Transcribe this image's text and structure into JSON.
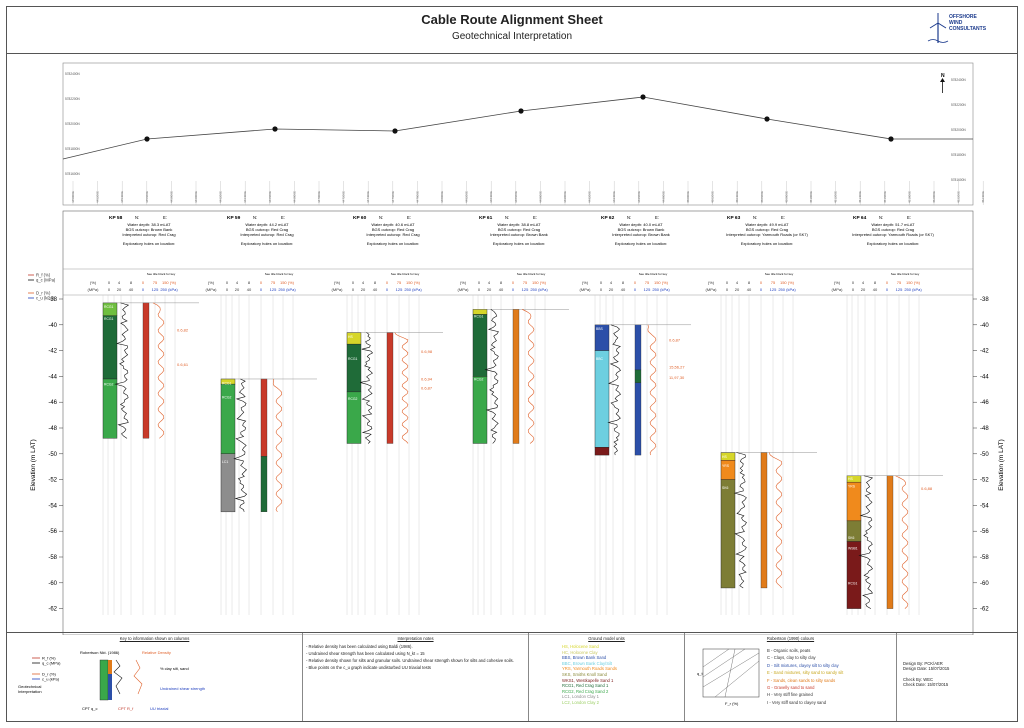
{
  "title": "Cable Route Alignment Sheet",
  "subtitle": "Geotechnical Interpretation",
  "logo": {
    "line1": "OFFSHORE",
    "line2": "WIND",
    "line3": "CONSULTANTS"
  },
  "plan": {
    "north_label": "N",
    "left_ticks": [
      "5782400N",
      "5782200N",
      "5782000N",
      "5781800N",
      "5781600N"
    ],
    "right_ticks": [
      "5782400N",
      "5782200N",
      "5782000N",
      "5781800N",
      "5781600N"
    ],
    "easting_ticks": [
      "445000E",
      "445200E",
      "445400E",
      "445600E",
      "445800E",
      "446000E",
      "446200E",
      "446400E",
      "446600E",
      "446800E",
      "447000E",
      "447200E",
      "447400E",
      "447600E",
      "447800E",
      "448000E",
      "448200E",
      "448400E",
      "448600E",
      "448800E",
      "449000E",
      "449200E",
      "449400E",
      "449600E",
      "449800E",
      "450000E",
      "450200E",
      "450400E",
      "450600E",
      "450800E",
      "451000E",
      "451200E",
      "451400E",
      "451600E",
      "451800E",
      "452000E",
      "452200E",
      "452400E"
    ]
  },
  "kps": [
    {
      "kp": "KP 58",
      "N": "N:",
      "E": "E:",
      "water": "Water depth: 38.3 mLAT",
      "bgs": "BGS outcrop: Brown Bank",
      "interp": "Interpreted outcrop: Red Crag",
      "holes": "Exploratory holes on location:"
    },
    {
      "kp": "KP 59",
      "N": "N:",
      "E": "E:",
      "water": "Water depth: 44.2 mLAT",
      "bgs": "BGS outcrop: Red Crag",
      "interp": "Interpreted outcrop: Red Crag",
      "holes": "Exploratory holes on location:"
    },
    {
      "kp": "KP 60",
      "N": "N:",
      "E": "E:",
      "water": "Water depth: 40.6 mLAT",
      "bgs": "BGS outcrop: Red Crag",
      "interp": "Interpreted outcrop: Red Crag",
      "holes": "Exploratory holes on location:"
    },
    {
      "kp": "KP 61",
      "N": "N:",
      "E": "E:",
      "water": "Water depth: 38.8 mLAT",
      "bgs": "BGS outcrop: Red Crag",
      "interp": "Interpreted outcrop: Brown Bank",
      "holes": "Exploratory holes on location:"
    },
    {
      "kp": "KP 62",
      "N": "N:",
      "E": "E:",
      "water": "Water depth: 40.0 mLAT",
      "bgs": "BGS outcrop: Brown Bank",
      "interp": "Interpreted outcrop: Brown Bank",
      "holes": "Exploratory holes on location:"
    },
    {
      "kp": "KP 63",
      "N": "N:",
      "E": "E:",
      "water": "Water depth: 49.9 mLAT",
      "bgs": "BGS outcrop: Red Crag",
      "interp": "Interpreted outcrop: Yarmouth Roads (or SK7)",
      "holes": "Exploratory holes on location:"
    },
    {
      "kp": "KP 64",
      "N": "N:",
      "E": "E:",
      "water": "Water depth: 51.7 mLAT",
      "bgs": "BGS outcrop: Red Crag",
      "interp": "Interpreted outcrop: Yarmouth Roads (or SK7)",
      "holes": "Exploratory holes on location:"
    }
  ],
  "legend": {
    "rf": "R_f (%)",
    "qc": "q_c (MPa)",
    "dr": "D_r (%)",
    "cu": "c_u (kPa)"
  },
  "column_header": {
    "see": "See title block for key",
    "row1": [
      "(%)",
      "0",
      "4",
      "8",
      "0",
      "75",
      "150 (%)"
    ],
    "row2": [
      "(MPa)",
      "0",
      "20",
      "40",
      "0",
      "125",
      "250 (kPa)"
    ]
  },
  "elevation_label": "Elevation (m LAT)",
  "elevation_ticks": [
    "-38",
    "-40",
    "-42",
    "-44",
    "-46",
    "-48",
    "-50",
    "-52",
    "-54",
    "-56",
    "-58",
    "-60",
    "-62"
  ],
  "annotations": [
    {
      "col": 0,
      "elev": -40.5,
      "text": "0.6,82"
    },
    {
      "col": 0,
      "elev": -43.2,
      "text": "0.6,61"
    },
    {
      "col": 2,
      "elev": -42.2,
      "text": "0.6,98"
    },
    {
      "col": 2,
      "elev": -44.3,
      "text": "0.6,94"
    },
    {
      "col": 2,
      "elev": -45.0,
      "text": "0.6,87"
    },
    {
      "col": 4,
      "elev": -41.3,
      "text": "0.6,87"
    },
    {
      "col": 4,
      "elev": -43.4,
      "text": "15,56,27"
    },
    {
      "col": 4,
      "elev": -44.2,
      "text": "11,97,30"
    },
    {
      "col": 6,
      "elev": -52.8,
      "text": "0.6,88"
    }
  ],
  "unit_labels": [
    {
      "col": 0,
      "elev": -38.6,
      "text": "RCG1"
    },
    {
      "col": 0,
      "elev": -39.5,
      "text": "RCG1"
    },
    {
      "col": 0,
      "elev": -44.6,
      "text": "RCG2"
    },
    {
      "col": 1,
      "elev": -44.5,
      "text": "RCG1"
    },
    {
      "col": 1,
      "elev": -45.6,
      "text": "RCG2"
    },
    {
      "col": 1,
      "elev": -50.6,
      "text": "LC1"
    },
    {
      "col": 2,
      "elev": -40.9,
      "text": "HS"
    },
    {
      "col": 2,
      "elev": -42.6,
      "text": "RCG1"
    },
    {
      "col": 2,
      "elev": -45.7,
      "text": "RCG2"
    },
    {
      "col": 3,
      "elev": -39.3,
      "text": "RCG1"
    },
    {
      "col": 3,
      "elev": -44.2,
      "text": "RCG2"
    },
    {
      "col": 4,
      "elev": -40.3,
      "text": "BBS"
    },
    {
      "col": 4,
      "elev": -42.6,
      "text": "BBC"
    },
    {
      "col": 5,
      "elev": -50.2,
      "text": "HS"
    },
    {
      "col": 5,
      "elev": -50.9,
      "text": "YRS"
    },
    {
      "col": 5,
      "elev": -52.6,
      "text": "SK6"
    },
    {
      "col": 6,
      "elev": -51.9,
      "text": "HS"
    },
    {
      "col": 6,
      "elev": -52.5,
      "text": "YRS"
    },
    {
      "col": 6,
      "elev": -56.5,
      "text": "SK6"
    },
    {
      "col": 6,
      "elev": -57.3,
      "text": "WSB1"
    },
    {
      "col": 6,
      "elev": -60.0,
      "text": "RCG1"
    }
  ],
  "key_panel": {
    "title": "Key to information shown on columns",
    "rf": "R_f (%)",
    "qc": "q_c (MPa)",
    "dr": "D_r (%)",
    "cu": "c_u (kPa)",
    "robertson": "Robertson Nkt. (1986)",
    "relative_density": "Relative Density",
    "geotech": "Geotechnical",
    "interpretation": "Interpretation",
    "clay": "% clay silt, sand",
    "undrained": "Undrained shear strength",
    "cpt": "CPT q_c",
    "cpt2": "CPT R_f",
    "uu": "UU triaxial"
  },
  "interp_notes": {
    "title": "Interpretation notes",
    "items": [
      "- Relative density has been calculated using Baldi (1986).",
      "- Undrained shear strength has been calculated using N_kt = 15",
      "- Relative density shown for silts and granular soils. Undrained shear strength shown for silts and cohesive soils.",
      "- Blue points on the c_u graph indicate undisturbed UU triaxial tests"
    ]
  },
  "ground_units": {
    "title": "Ground model units",
    "items": [
      {
        "text": "HS, Holocene Sand",
        "color": "#d6d62a"
      },
      {
        "text": "HC, Holocene Clay",
        "color": "#c8c860"
      },
      {
        "text": "BBS, Brown Bank Sand",
        "color": "#2c4fa8"
      },
      {
        "text": "BBC, Brown Bank Clay/Silt",
        "color": "#6dcfe0"
      },
      {
        "text": "YRS, Yarmouth Roads Sands",
        "color": "#f08a1c"
      },
      {
        "text": "SKS, Smiths Knoll Sand",
        "color": "#8a8a3a"
      },
      {
        "text": "WKS1, Westkapelle Sand 1",
        "color": "#7a1a1a"
      },
      {
        "text": "RCG1, Red Crag Sand 1",
        "color": "#1f6b38"
      },
      {
        "text": "RCG2, Red Crag Sand 2",
        "color": "#3aa84a"
      },
      {
        "text": "LC1, London Clay 1",
        "color": "#8d8d8d"
      },
      {
        "text": "LC2, London Clay 2",
        "color": "#9ccf66"
      }
    ]
  },
  "robertson": {
    "title": "Robertson (1990) colours",
    "items": [
      {
        "text": "B - Organic soils, peats",
        "color": "#333"
      },
      {
        "text": "C - Clays, clay to silty clay",
        "color": "#333"
      },
      {
        "text": "D - Silt mixtures, clayey silt to silty clay",
        "color": "#2c4fa8"
      },
      {
        "text": "E - Sand mixtures, silty sand to sandy silt",
        "color": "#c8a820"
      },
      {
        "text": "F - Sands, clean sands to silty sands",
        "color": "#e07b1a"
      },
      {
        "text": "G - Gravelly sand to sand",
        "color": "#c83a2a"
      },
      {
        "text": "H - Very stiff fine grained",
        "color": "#333"
      },
      {
        "text": "I - Very stiff sand to clayey sand",
        "color": "#333"
      }
    ],
    "axis_y": "q_t",
    "axis_x": "F_r (%)"
  },
  "design": {
    "design_by": "Design By:",
    "design_by_val": "PCK/AER",
    "design_date": "Design Date:",
    "design_date_val": "15/07/2015",
    "check_by": "Check By:",
    "check_by_val": "WEC",
    "check_date": "Check Date:",
    "check_date_val": "15/07/2015"
  },
  "colors": {
    "rf": "#c0392b",
    "qc": "#111111",
    "dr": "#e0612a",
    "cu": "#1f3fbf"
  }
}
